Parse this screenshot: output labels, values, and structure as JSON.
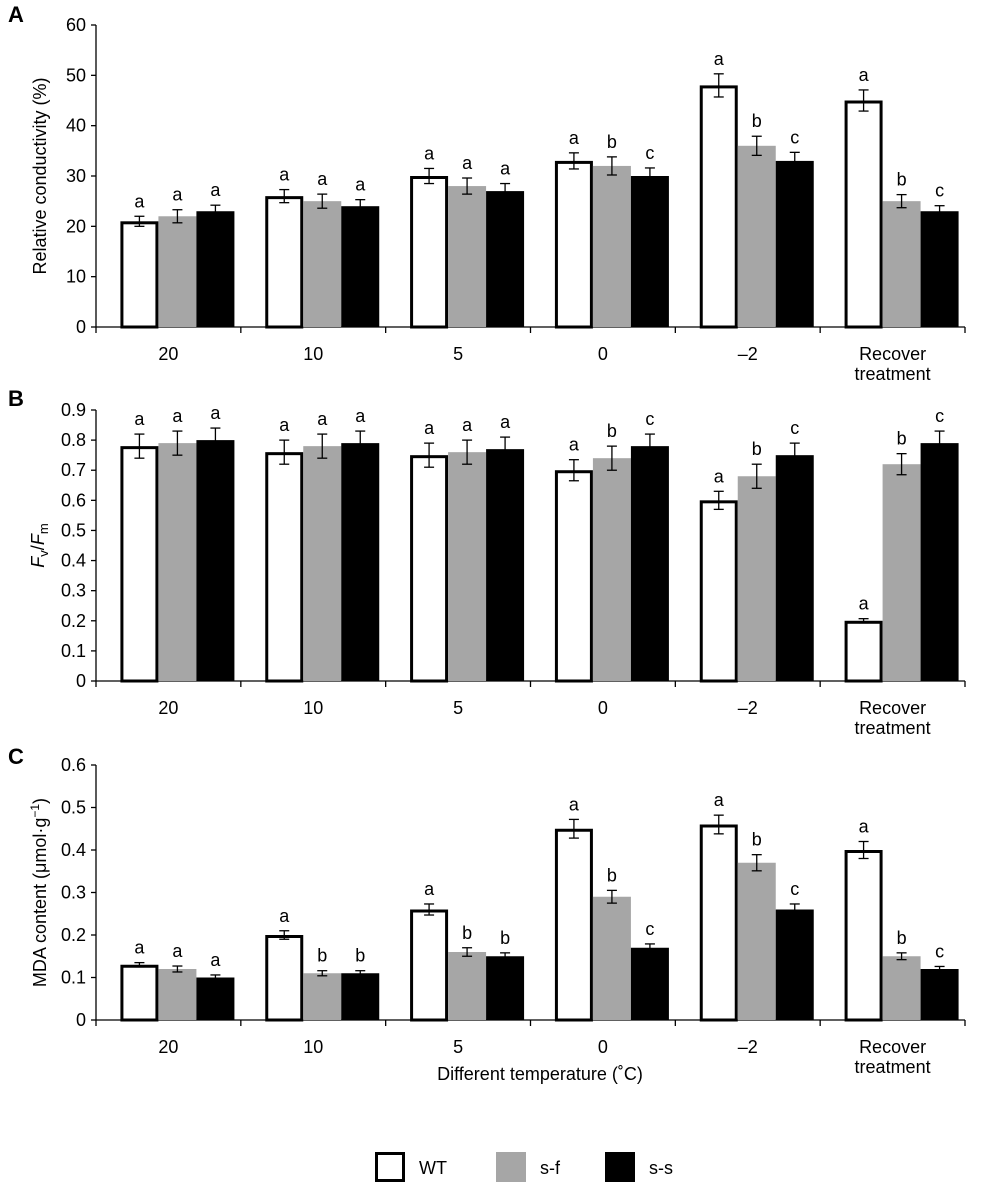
{
  "chart_data": [
    {
      "panel": "A",
      "type": "bar",
      "ylabel": "Relative conductivity (%)",
      "ylim": [
        0,
        60
      ],
      "yticks": [
        "0",
        "10",
        "20",
        "30",
        "40",
        "50",
        "60"
      ],
      "categories": [
        "20",
        "10",
        "5",
        "0",
        "–2",
        "Recover treatment"
      ],
      "category_lines": [
        [
          "20"
        ],
        [
          "10"
        ],
        [
          "5"
        ],
        [
          "0"
        ],
        [
          "–2"
        ],
        [
          "Recover",
          "treatment"
        ]
      ],
      "series": [
        {
          "name": "WT",
          "values": [
            21,
            26,
            30,
            33,
            48,
            45
          ],
          "errors": [
            1.0,
            1.3,
            1.5,
            1.6,
            2.3,
            2.1
          ],
          "labels": [
            "a",
            "a",
            "a",
            "a",
            "a",
            "a"
          ]
        },
        {
          "name": "s-f",
          "values": [
            22,
            25,
            28,
            32,
            36,
            25
          ],
          "errors": [
            1.3,
            1.4,
            1.6,
            1.8,
            1.9,
            1.3
          ],
          "labels": [
            "a",
            "a",
            "a",
            "b",
            "b",
            "b"
          ]
        },
        {
          "name": "s-s",
          "values": [
            23,
            24,
            27,
            30,
            33,
            23
          ],
          "errors": [
            1.2,
            1.3,
            1.5,
            1.6,
            1.7,
            1.1
          ],
          "labels": [
            "a",
            "a",
            "a",
            "c",
            "c",
            "c"
          ]
        }
      ]
    },
    {
      "panel": "B",
      "type": "bar",
      "ylabel_main": "F",
      "ylabel_sub1": "v",
      "ylabel_slash": "/",
      "ylabel_main2": "F",
      "ylabel_sub2": "m",
      "ylim": [
        0,
        0.9
      ],
      "yticks": [
        "0",
        "0.1",
        "0.2",
        "0.3",
        "0.4",
        "0.5",
        "0.6",
        "0.7",
        "0.8",
        "0.9"
      ],
      "categories": [
        "20",
        "10",
        "5",
        "0",
        "–2",
        "Recover treatment"
      ],
      "category_lines": [
        [
          "20"
        ],
        [
          "10"
        ],
        [
          "5"
        ],
        [
          "0"
        ],
        [
          "–2"
        ],
        [
          "Recover",
          "treatment"
        ]
      ],
      "series": [
        {
          "name": "WT",
          "values": [
            0.78,
            0.76,
            0.75,
            0.7,
            0.6,
            0.2
          ],
          "errors": [
            0.04,
            0.04,
            0.04,
            0.035,
            0.03,
            0.007
          ],
          "labels": [
            "a",
            "a",
            "a",
            "a",
            "a",
            "a"
          ]
        },
        {
          "name": "s-f",
          "values": [
            0.79,
            0.78,
            0.76,
            0.74,
            0.68,
            0.72
          ],
          "errors": [
            0.04,
            0.04,
            0.04,
            0.04,
            0.04,
            0.035
          ],
          "labels": [
            "a",
            "a",
            "a",
            "b",
            "b",
            "b"
          ]
        },
        {
          "name": "s-s",
          "values": [
            0.8,
            0.79,
            0.77,
            0.78,
            0.75,
            0.79
          ],
          "errors": [
            0.04,
            0.04,
            0.04,
            0.04,
            0.04,
            0.04
          ],
          "labels": [
            "a",
            "a",
            "a",
            "c",
            "c",
            "c"
          ]
        }
      ]
    },
    {
      "panel": "C",
      "type": "bar",
      "ylabel": "MDA content (μmol·g",
      "ylabel_sup": "−1",
      "ylabel_end": ")",
      "xlabel": "Different  temperature (˚C)",
      "ylim": [
        0,
        0.6
      ],
      "yticks": [
        "0",
        "0.1",
        "0.2",
        "0.3",
        "0.4",
        "0.5",
        "0.6"
      ],
      "categories": [
        "20",
        "10",
        "5",
        "0",
        "–2",
        "Recover treatment"
      ],
      "category_lines": [
        [
          "20"
        ],
        [
          "10"
        ],
        [
          "5"
        ],
        [
          "0"
        ],
        [
          "–2"
        ],
        [
          "Recover",
          "treatment"
        ]
      ],
      "series": [
        {
          "name": "WT",
          "values": [
            0.13,
            0.2,
            0.26,
            0.45,
            0.46,
            0.4
          ],
          "errors": [
            0.005,
            0.01,
            0.013,
            0.022,
            0.022,
            0.02
          ],
          "labels": [
            "a",
            "a",
            "a",
            "a",
            "a",
            "a"
          ]
        },
        {
          "name": "s-f",
          "values": [
            0.12,
            0.11,
            0.16,
            0.29,
            0.37,
            0.15
          ],
          "errors": [
            0.007,
            0.006,
            0.01,
            0.015,
            0.019,
            0.008
          ],
          "labels": [
            "a",
            "b",
            "b",
            "b",
            "b",
            "b"
          ]
        },
        {
          "name": "s-s",
          "values": [
            0.1,
            0.11,
            0.15,
            0.17,
            0.26,
            0.12
          ],
          "errors": [
            0.006,
            0.006,
            0.008,
            0.009,
            0.013,
            0.006
          ],
          "labels": [
            "a",
            "b",
            "b",
            "c",
            "c",
            "c"
          ]
        }
      ]
    }
  ],
  "panel_labels": [
    "A",
    "B",
    "C"
  ],
  "legend": {
    "items": [
      {
        "name": "WT",
        "fill": "#ffffff",
        "stroke": "#000000"
      },
      {
        "name": "s-f",
        "fill": "#a6a6a6",
        "stroke": "#a6a6a6"
      },
      {
        "name": "s-s",
        "fill": "#000000",
        "stroke": "#000000"
      }
    ],
    "placement": "bottom-center"
  },
  "colors": {
    "WT": "#ffffff",
    "s-f": "#a6a6a6",
    "s-s": "#000000",
    "outline": "#000000"
  }
}
